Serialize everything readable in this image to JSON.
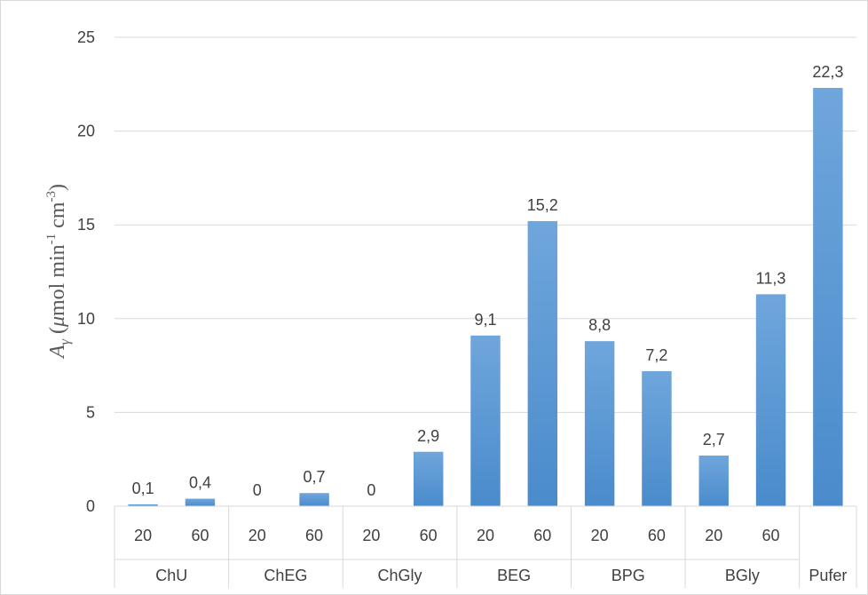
{
  "chart_data": {
    "type": "bar",
    "ylabel_parts": {
      "symbol": "A",
      "subscript": "γ",
      "open": " (",
      "mu": "μ",
      "unit_a": "mol min",
      "exp_a": "-1",
      "unit_b": " cm",
      "exp_b": "-3",
      "close": ")"
    },
    "ylim": [
      0,
      25
    ],
    "yticks": [
      "0",
      "5",
      "10",
      "15",
      "20",
      "25"
    ],
    "ytick_values": [
      0,
      5,
      10,
      15,
      20,
      25
    ],
    "grid": true,
    "legend": "none",
    "bar_color": "#5b9bd5",
    "groups": [
      {
        "name": "ChU",
        "categories": [
          "20",
          "60"
        ],
        "values": [
          0.1,
          0.4
        ],
        "labels": [
          "0,1",
          "0,4"
        ]
      },
      {
        "name": "ChEG",
        "categories": [
          "20",
          "60"
        ],
        "values": [
          0,
          0.7
        ],
        "labels": [
          "0",
          "0,7"
        ]
      },
      {
        "name": "ChGly",
        "categories": [
          "20",
          "60"
        ],
        "values": [
          0,
          2.9
        ],
        "labels": [
          "0",
          "2,9"
        ]
      },
      {
        "name": "BEG",
        "categories": [
          "20",
          "60"
        ],
        "values": [
          9.1,
          15.2
        ],
        "labels": [
          "9,1",
          "15,2"
        ]
      },
      {
        "name": "BPG",
        "categories": [
          "20",
          "60"
        ],
        "values": [
          8.8,
          7.2
        ],
        "labels": [
          "8,8",
          "7,2"
        ]
      },
      {
        "name": "BGly",
        "categories": [
          "20",
          "60"
        ],
        "values": [
          2.7,
          11.3
        ],
        "labels": [
          "2,7",
          "11,3"
        ]
      },
      {
        "name": "Pufer",
        "categories": [
          ""
        ],
        "values": [
          22.3
        ],
        "labels": [
          "22,3"
        ]
      }
    ]
  }
}
